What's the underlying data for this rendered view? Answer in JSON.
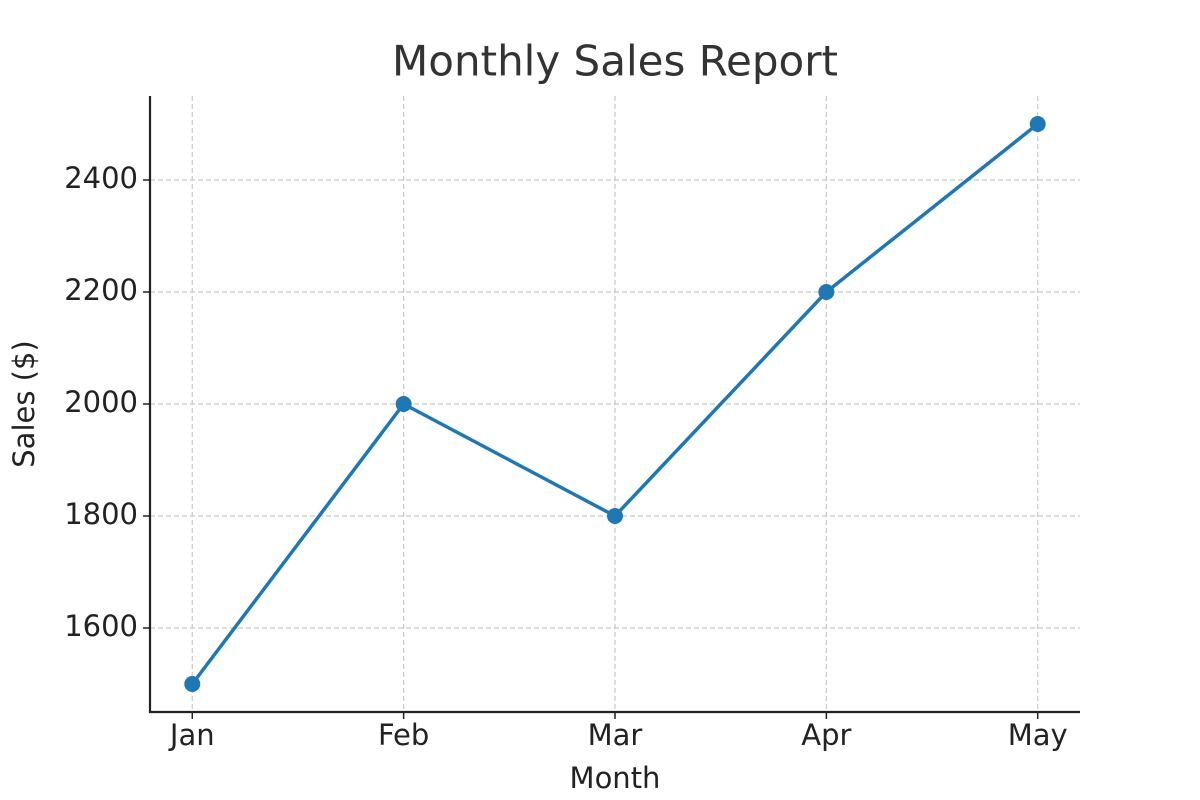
{
  "chart_data": {
    "type": "line",
    "title": "Monthly Sales Report",
    "x_label": "Month",
    "y_label": "Sales ($)",
    "categories": [
      "Jan",
      "Feb",
      "Mar",
      "Apr",
      "May"
    ],
    "series": [
      {
        "name": "Sales",
        "color": "#1f77b4",
        "values": [
          1500,
          2000,
          1800,
          2200,
          2500
        ]
      }
    ],
    "ylim": [
      1450,
      2550
    ],
    "yticks": [
      1600,
      1800,
      2000,
      2200,
      2400
    ],
    "grid": true
  }
}
